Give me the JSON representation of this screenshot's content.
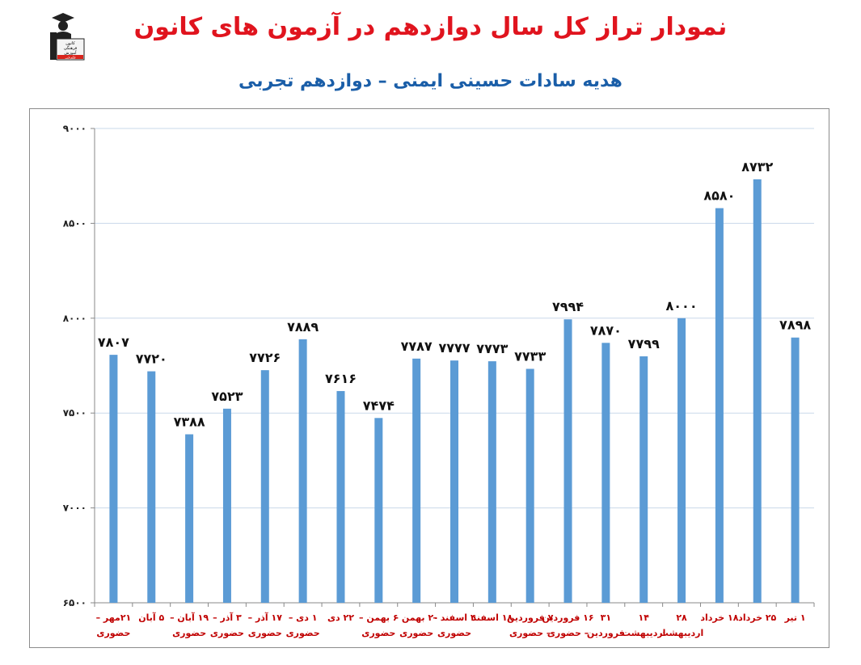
{
  "title": "نمودار تراز کل سال دوازدهم در آزمون های کانون",
  "subtitle": "هدیه سادات حسینی ایمنی – دوازدهم تجربی",
  "logo": {
    "icon": "graduate-podium-icon",
    "lines": [
      "کانون",
      "فرهنگی",
      "آموزش",
      "قلم‌چی"
    ]
  },
  "chart_data": {
    "type": "bar",
    "color": "#5b9bd5",
    "ylim": [
      6500,
      9000
    ],
    "yticks": [
      "۶۵۰۰",
      "۷۰۰۰",
      "۷۵۰۰",
      "۸۰۰۰",
      "۸۵۰۰",
      "۹۰۰۰"
    ],
    "ytick_values": [
      6500,
      7000,
      7500,
      8000,
      8500,
      9000
    ],
    "grid": true,
    "categories": [
      [
        "۲۱مهر –",
        "حضوری"
      ],
      [
        "۵ آبان"
      ],
      [
        "۱۹ آبان –",
        "حضوری"
      ],
      [
        "۳ آذر –",
        "حضوری"
      ],
      [
        "۱۷ آذر –",
        "حضوری"
      ],
      [
        "۱ دی –",
        "حضوری"
      ],
      [
        "۲۲ دی"
      ],
      [
        "۶ بهمن –",
        "حضوری"
      ],
      [
        "۲۰ بهمن –",
        "حضوری"
      ],
      [
        "۴ اسفند –",
        "حضوری"
      ],
      [
        "۱۸ اسفند"
      ],
      [
        "۷ فروردین",
        "– حضوری"
      ],
      [
        "۱۶ فروردین",
        "– حضوری"
      ],
      [
        "۳۱",
        "فروردین"
      ],
      [
        "۱۴",
        "اردیبهشت"
      ],
      [
        "۲۸",
        "اردیبهشت"
      ],
      [
        "۱۸ خرداد"
      ],
      [
        "۲۵ خرداد"
      ],
      [
        "۱ تیر"
      ]
    ],
    "values": [
      7807,
      7720,
      7388,
      7523,
      7726,
      7889,
      7616,
      7474,
      7787,
      7777,
      7773,
      7733,
      7994,
      7870,
      7799,
      8000,
      8580,
      8732,
      7898
    ],
    "labels": [
      "۷۸۰۷",
      "۷۷۲۰",
      "۷۳۸۸",
      "۷۵۲۳",
      "۷۷۲۶",
      "۷۸۸۹",
      "۷۶۱۶",
      "۷۴۷۴",
      "۷۷۸۷",
      "۷۷۷۷",
      "۷۷۷۳",
      "۷۷۳۳",
      "۷۹۹۴",
      "۷۸۷۰",
      "۷۷۹۹",
      "۸۰۰۰",
      "۸۵۸۰",
      "۸۷۳۲",
      "۷۸۹۸"
    ]
  }
}
